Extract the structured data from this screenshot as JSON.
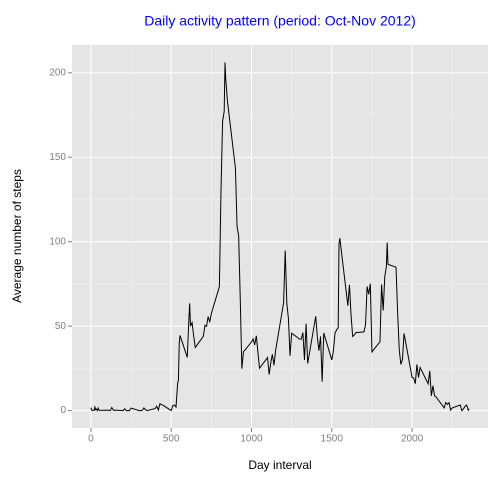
{
  "chart_data": {
    "type": "line",
    "title": "Daily activity pattern (period: Oct-Nov 2012)",
    "title_color": "#0000ff",
    "x_label": "Day interval",
    "y_label": "Average number of steps",
    "x": [
      0,
      5,
      10,
      15,
      20,
      25,
      30,
      35,
      40,
      45,
      50,
      55,
      100,
      110,
      120,
      130,
      140,
      150,
      200,
      210,
      220,
      230,
      240,
      250,
      300,
      310,
      320,
      330,
      340,
      350,
      400,
      410,
      420,
      430,
      440,
      450,
      500,
      510,
      520,
      530,
      540,
      545,
      550,
      555,
      600,
      610,
      615,
      620,
      630,
      640,
      650,
      700,
      710,
      720,
      730,
      740,
      750,
      800,
      810,
      820,
      830,
      835,
      840,
      850,
      900,
      910,
      920,
      930,
      940,
      950,
      1000,
      1010,
      1020,
      1030,
      1040,
      1050,
      1100,
      1110,
      1120,
      1130,
      1140,
      1150,
      1200,
      1210,
      1220,
      1230,
      1240,
      1250,
      1300,
      1310,
      1320,
      1330,
      1340,
      1350,
      1400,
      1410,
      1420,
      1430,
      1440,
      1450,
      1500,
      1510,
      1520,
      1530,
      1540,
      1545,
      1550,
      1600,
      1610,
      1620,
      1630,
      1640,
      1650,
      1700,
      1710,
      1720,
      1730,
      1740,
      1750,
      1800,
      1810,
      1820,
      1830,
      1840,
      1845,
      1850,
      1900,
      1910,
      1920,
      1930,
      1940,
      1950,
      2000,
      2010,
      2020,
      2030,
      2040,
      2050,
      2100,
      2110,
      2120,
      2130,
      2140,
      2150,
      2200,
      2210,
      2220,
      2230,
      2240,
      2250,
      2300,
      2310,
      2320,
      2330,
      2340,
      2350,
      2355
    ],
    "series": [
      {
        "name": "steps",
        "color": "#000000",
        "values": [
          1.7,
          0.3,
          0.1,
          0.2,
          0.1,
          2.1,
          0.5,
          0.9,
          0,
          1.5,
          0.3,
          0.1,
          0.3,
          0.2,
          0,
          1.8,
          0.2,
          0.3,
          0,
          1.1,
          0,
          0,
          0,
          1.5,
          0,
          0,
          0.2,
          1.6,
          0.5,
          0,
          1.2,
          2.6,
          0.3,
          4.1,
          3.5,
          3.1,
          0,
          3,
          3.3,
          2.1,
          16,
          18.3,
          39.5,
          44.5,
          31.5,
          53.8,
          63.5,
          50,
          52.1,
          44.1,
          37.4,
          44,
          50.5,
          49.9,
          55.7,
          52.3,
          57.5,
          73.4,
          129.4,
          171.2,
          177.3,
          206.2,
          195.9,
          183.4,
          143.5,
          109.1,
          103.5,
          66.2,
          24.8,
          34.8,
          40.6,
          42.4,
          38.9,
          44.3,
          34.6,
          25.1,
          31.4,
          21.3,
          28.4,
          33.3,
          26.8,
          35.5,
          63.9,
          94.8,
          63.5,
          54.5,
          32.4,
          45.8,
          42.3,
          42.3,
          46.2,
          30,
          51.4,
          27.9,
          55.8,
          43.6,
          35.5,
          43.9,
          17.1,
          45.9,
          30,
          35.5,
          45.8,
          47.8,
          49.1,
          98.7,
          102.1,
          62.1,
          74.5,
          56.4,
          43.9,
          44.7,
          46.2,
          46.6,
          50.7,
          73.5,
          68.9,
          75.1,
          34.8,
          40.7,
          74.7,
          59.3,
          79.4,
          85.3,
          99.5,
          86.6,
          84.9,
          58,
          36.1,
          27.4,
          30.2,
          45.7,
          19.6,
          19.3,
          15.9,
          27.3,
          19.6,
          25.5,
          15.9,
          23.5,
          8.7,
          14.7,
          8.7,
          8,
          1.6,
          4.8,
          3.7,
          4.7,
          0.3,
          1.6,
          3.3,
          0,
          1,
          2.6,
          3.3,
          0.2,
          1.1
        ]
      }
    ],
    "xlim": [
      -117.75,
      2472.75
    ],
    "xticks": [
      0,
      500,
      1000,
      1500,
      2000
    ],
    "ylim": [
      -10.31,
      216.48
    ],
    "yticks": [
      0,
      50,
      100,
      150,
      200
    ],
    "grid": true,
    "panel_color": "#e5e5e5"
  }
}
